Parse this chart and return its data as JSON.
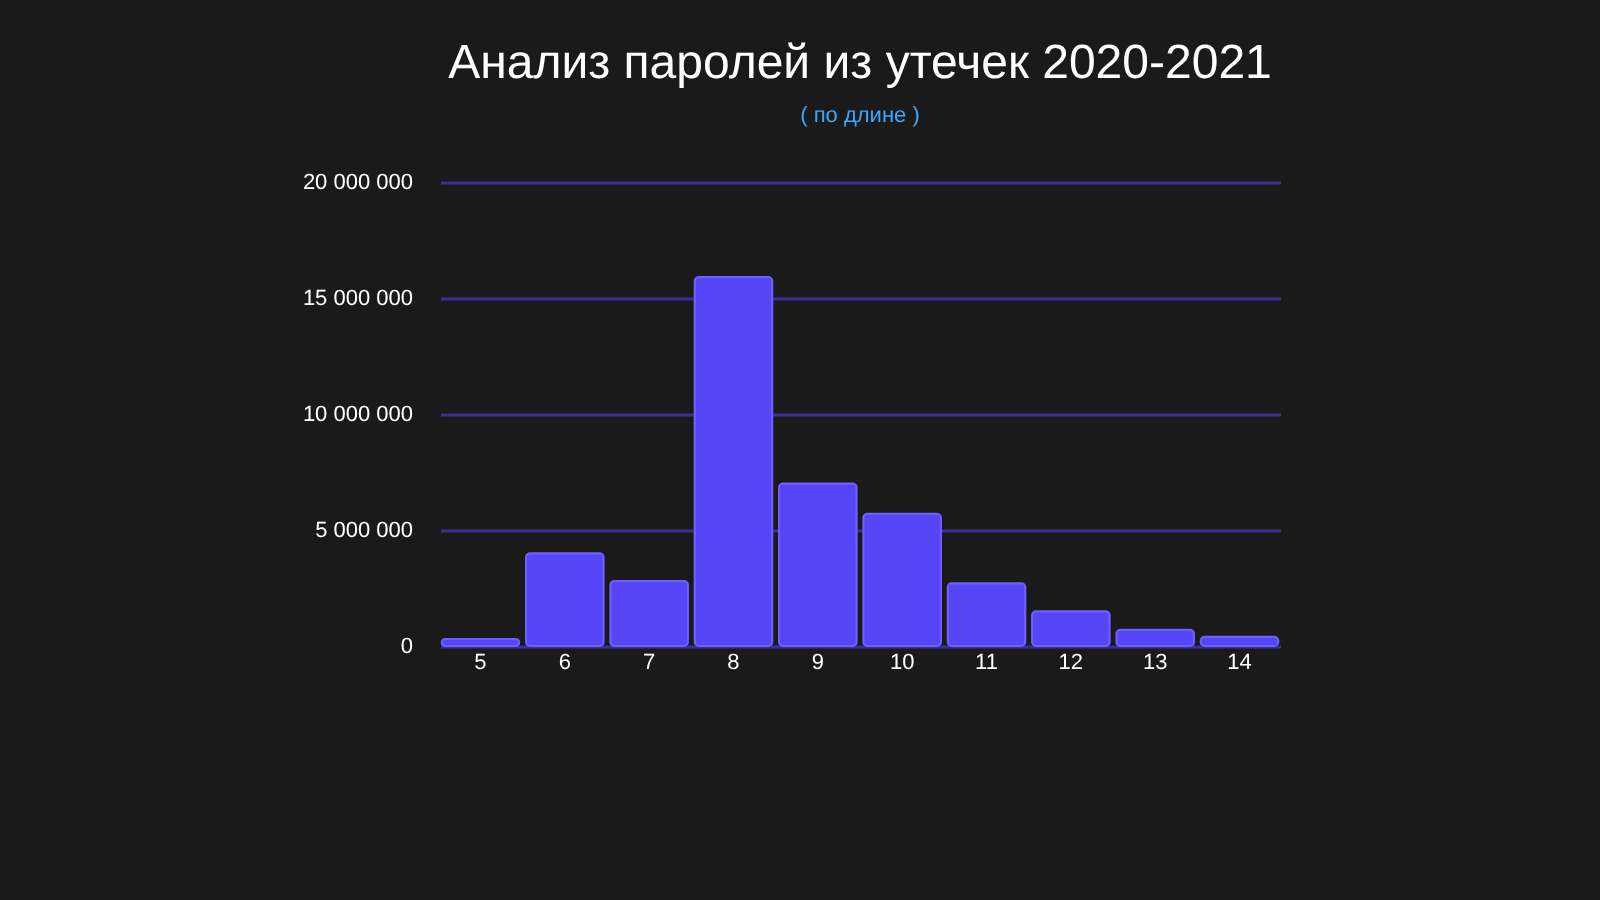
{
  "chart_data": {
    "type": "bar",
    "title": "Анализ паролей из утечек 2020-2021",
    "subtitle": "( по длине )",
    "categories": [
      "5",
      "6",
      "7",
      "8",
      "9",
      "10",
      "11",
      "12",
      "13",
      "14"
    ],
    "values": [
      300000,
      4000000,
      2800000,
      15900000,
      7000000,
      5700000,
      2700000,
      1500000,
      700000,
      400000
    ],
    "color": "#5746f8",
    "ylim": [
      0,
      20000000
    ],
    "yticks": [
      0,
      {
        "value": 5000000,
        "label": "5 000 000"
      },
      {
        "value": 10000000,
        "label": "10 000 000"
      },
      {
        "value": 15000000,
        "label": "15 000 000"
      },
      {
        "value": 20000000,
        "label": "20 000 000"
      }
    ],
    "grid": "y"
  }
}
